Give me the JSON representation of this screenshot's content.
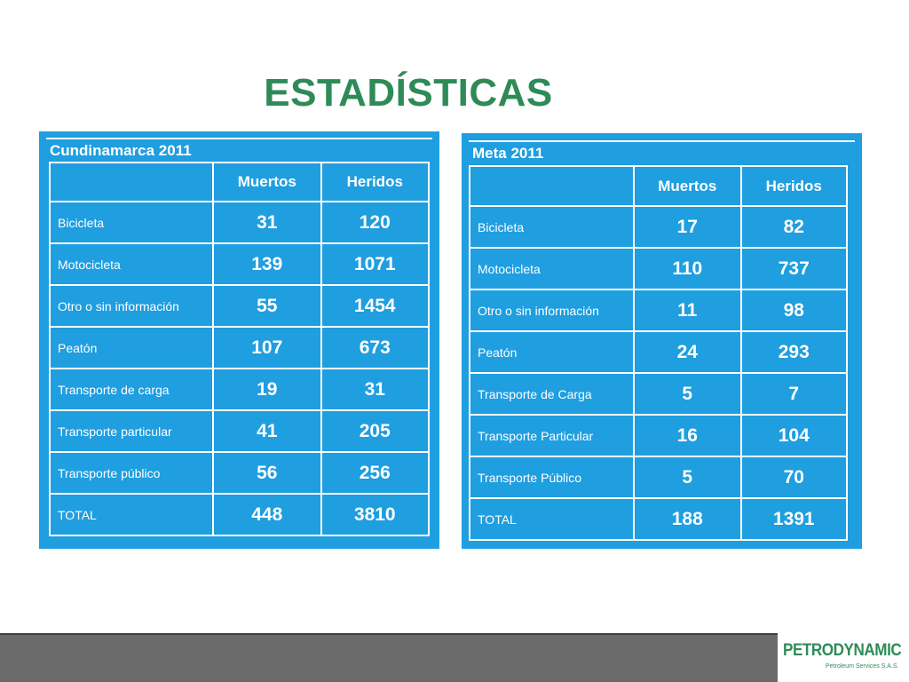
{
  "title": "ESTADÍSTICAS",
  "tables": [
    {
      "title": "Cundinamarca 2011",
      "headers": [
        "",
        "Muertos",
        "Heridos"
      ],
      "rows": [
        {
          "cat": "Bicicleta",
          "muertos": "31",
          "heridos": "120"
        },
        {
          "cat": "Motocicleta",
          "muertos": "139",
          "heridos": "1071"
        },
        {
          "cat": "Otro o sin información",
          "muertos": "55",
          "heridos": "1454"
        },
        {
          "cat": "Peatón",
          "muertos": "107",
          "heridos": "673"
        },
        {
          "cat": "Transporte de carga",
          "muertos": "19",
          "heridos": "31"
        },
        {
          "cat": "Transporte particular",
          "muertos": "41",
          "heridos": "205"
        },
        {
          "cat": "Transporte público",
          "muertos": "56",
          "heridos": "256"
        },
        {
          "cat": "TOTAL",
          "muertos": "448",
          "heridos": "3810"
        }
      ]
    },
    {
      "title": "Meta 2011",
      "headers": [
        "",
        "Muertos",
        "Heridos"
      ],
      "rows": [
        {
          "cat": "Bicicleta",
          "muertos": "17",
          "heridos": "82"
        },
        {
          "cat": "Motocicleta",
          "muertos": "110",
          "heridos": "737"
        },
        {
          "cat": "Otro o sin información",
          "muertos": "11",
          "heridos": "98"
        },
        {
          "cat": "Peatón",
          "muertos": "24",
          "heridos": "293"
        },
        {
          "cat": "Transporte de Carga",
          "muertos": "5",
          "heridos": "7"
        },
        {
          "cat": "Transporte Particular",
          "muertos": "16",
          "heridos": "104"
        },
        {
          "cat": "Transporte Público",
          "muertos": "5",
          "heridos": "70"
        },
        {
          "cat": "TOTAL",
          "muertos": "188",
          "heridos": "1391"
        }
      ]
    }
  ],
  "logo": {
    "name": "PETRODYNAMIC",
    "subtitle": "Petroleum Services S.A.S."
  },
  "colors": {
    "title": "#2e8b57",
    "panel": "#1f9ee0",
    "footer": "#6b6b6b"
  }
}
